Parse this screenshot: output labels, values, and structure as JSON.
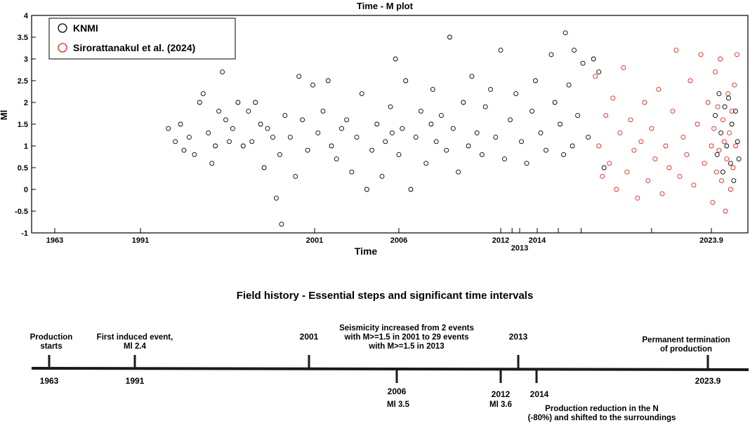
{
  "chart_data": [
    {
      "type": "scatter",
      "title": "Time - M plot",
      "xlabel": "Time",
      "ylabel": "Ml",
      "ylim": [
        -1,
        4
      ],
      "yticks": [
        "-1",
        "-0.5",
        "0",
        "0.5",
        "1",
        "1.5",
        "2",
        "2.5",
        "3",
        "3.5",
        "4"
      ],
      "xticks": [
        {
          "label": "1963",
          "x": 1963
        },
        {
          "label": "1991",
          "x": 1991
        },
        {
          "label": "2001",
          "x": 2001
        },
        {
          "label": "2006",
          "x": 2006
        },
        {
          "label": "2012",
          "x": 2012
        },
        {
          "label": "2013",
          "x": 2013
        },
        {
          "label": "2014",
          "x": 2014
        },
        {
          "label": "2023.9",
          "x": 2023.9
        }
      ],
      "extra_ticks": [
        2012.6,
        2015.2,
        2016.5,
        2020.5
      ],
      "legend_position": "top-left",
      "series": [
        {
          "name": "KNMI",
          "color": "#000000",
          "points": [
            [
              1992.6,
              1.4
            ],
            [
              1993.0,
              1.1
            ],
            [
              1993.3,
              1.5
            ],
            [
              1993.5,
              0.9
            ],
            [
              1993.8,
              1.2
            ],
            [
              1994.1,
              0.8
            ],
            [
              1994.4,
              2.0
            ],
            [
              1994.6,
              2.2
            ],
            [
              1994.9,
              1.3
            ],
            [
              1995.1,
              0.6
            ],
            [
              1995.3,
              1.0
            ],
            [
              1995.5,
              1.8
            ],
            [
              1995.7,
              2.7
            ],
            [
              1995.9,
              1.6
            ],
            [
              1996.1,
              1.1
            ],
            [
              1996.3,
              1.4
            ],
            [
              1996.6,
              2.0
            ],
            [
              1996.9,
              1.0
            ],
            [
              1997.2,
              1.8
            ],
            [
              1997.4,
              1.1
            ],
            [
              1997.6,
              2.0
            ],
            [
              1997.9,
              1.5
            ],
            [
              1998.1,
              0.5
            ],
            [
              1998.3,
              1.4
            ],
            [
              1998.6,
              1.2
            ],
            [
              1998.8,
              -0.2
            ],
            [
              1999.0,
              0.8
            ],
            [
              1999.1,
              -0.8
            ],
            [
              1999.3,
              1.7
            ],
            [
              1999.6,
              1.2
            ],
            [
              1999.9,
              0.3
            ],
            [
              2000.1,
              2.6
            ],
            [
              2000.3,
              1.6
            ],
            [
              2000.6,
              0.9
            ],
            [
              2000.9,
              2.4
            ],
            [
              2001.2,
              1.3
            ],
            [
              2001.5,
              1.8
            ],
            [
              2001.8,
              2.5
            ],
            [
              2002.0,
              1.0
            ],
            [
              2002.3,
              0.7
            ],
            [
              2002.6,
              1.4
            ],
            [
              2002.9,
              1.6
            ],
            [
              2003.2,
              0.4
            ],
            [
              2003.5,
              1.2
            ],
            [
              2003.8,
              2.2
            ],
            [
              2004.1,
              0.0
            ],
            [
              2004.4,
              0.9
            ],
            [
              2004.7,
              1.5
            ],
            [
              2005.0,
              0.3
            ],
            [
              2005.2,
              1.1
            ],
            [
              2005.5,
              1.9
            ],
            [
              2005.6,
              1.3
            ],
            [
              2005.8,
              3.0
            ],
            [
              2006.0,
              0.8
            ],
            [
              2006.2,
              1.4
            ],
            [
              2006.4,
              2.5
            ],
            [
              2006.7,
              0.0
            ],
            [
              2007.0,
              1.2
            ],
            [
              2007.3,
              1.8
            ],
            [
              2007.6,
              0.6
            ],
            [
              2007.9,
              1.5
            ],
            [
              2008.0,
              2.3
            ],
            [
              2008.2,
              1.1
            ],
            [
              2008.5,
              1.7
            ],
            [
              2008.8,
              0.9
            ],
            [
              2009.0,
              3.5
            ],
            [
              2009.2,
              1.4
            ],
            [
              2009.5,
              0.4
            ],
            [
              2009.8,
              2.0
            ],
            [
              2010.1,
              1.0
            ],
            [
              2010.3,
              2.6
            ],
            [
              2010.6,
              1.3
            ],
            [
              2010.9,
              0.8
            ],
            [
              2011.1,
              1.9
            ],
            [
              2011.4,
              2.3
            ],
            [
              2011.7,
              1.2
            ],
            [
              2012.0,
              3.2
            ],
            [
              2012.2,
              0.7
            ],
            [
              2012.5,
              1.6
            ],
            [
              2012.8,
              2.2
            ],
            [
              2013.1,
              1.1
            ],
            [
              2013.4,
              0.6
            ],
            [
              2013.7,
              1.8
            ],
            [
              2013.9,
              2.5
            ],
            [
              2014.2,
              1.3
            ],
            [
              2014.5,
              0.9
            ],
            [
              2014.8,
              3.1
            ],
            [
              2015.0,
              2.0
            ],
            [
              2015.3,
              1.5
            ],
            [
              2015.5,
              0.8
            ],
            [
              2015.6,
              3.6
            ],
            [
              2015.8,
              2.4
            ],
            [
              2016.0,
              1.0
            ],
            [
              2016.1,
              3.2
            ],
            [
              2016.3,
              1.7
            ],
            [
              2016.6,
              2.9
            ],
            [
              2016.9,
              1.2
            ],
            [
              2017.2,
              3.0
            ],
            [
              2017.5,
              2.7
            ],
            [
              2017.8,
              0.5
            ],
            [
              2024.5,
              1.7
            ],
            [
              2024.8,
              0.8
            ],
            [
              2025.1,
              2.2
            ],
            [
              2025.4,
              1.3
            ],
            [
              2025.7,
              0.4
            ],
            [
              2026.0,
              1.9
            ],
            [
              2026.3,
              1.0
            ],
            [
              2026.6,
              2.1
            ],
            [
              2026.9,
              0.6
            ],
            [
              2027.1,
              1.5
            ],
            [
              2027.4,
              0.2
            ],
            [
              2027.7,
              1.8
            ],
            [
              2028.0,
              1.1
            ],
            [
              2028.2,
              0.7
            ]
          ]
        },
        {
          "name": "Sirorattanakul et al. (2024)",
          "color": "#e8231d",
          "points": [
            [
              2017.3,
              2.6
            ],
            [
              2017.5,
              1.0
            ],
            [
              2017.7,
              0.3
            ],
            [
              2017.9,
              1.7
            ],
            [
              2018.1,
              0.6
            ],
            [
              2018.3,
              2.1
            ],
            [
              2018.5,
              0.0
            ],
            [
              2018.7,
              1.3
            ],
            [
              2018.9,
              2.8
            ],
            [
              2019.1,
              0.4
            ],
            [
              2019.3,
              1.6
            ],
            [
              2019.5,
              0.9
            ],
            [
              2019.7,
              -0.2
            ],
            [
              2019.9,
              1.1
            ],
            [
              2020.1,
              2.0
            ],
            [
              2020.3,
              0.2
            ],
            [
              2020.5,
              1.4
            ],
            [
              2020.7,
              0.7
            ],
            [
              2020.9,
              2.3
            ],
            [
              2021.1,
              -0.1
            ],
            [
              2021.3,
              1.0
            ],
            [
              2021.5,
              0.5
            ],
            [
              2021.7,
              1.8
            ],
            [
              2021.9,
              3.2
            ],
            [
              2022.1,
              0.3
            ],
            [
              2022.3,
              1.2
            ],
            [
              2022.5,
              0.8
            ],
            [
              2022.7,
              2.5
            ],
            [
              2022.9,
              0.1
            ],
            [
              2023.1,
              1.5
            ],
            [
              2023.3,
              3.1
            ],
            [
              2023.5,
              0.6
            ],
            [
              2023.7,
              2.0
            ],
            [
              2023.9,
              1.0
            ],
            [
              2024.1,
              -0.3
            ],
            [
              2024.3,
              1.4
            ],
            [
              2024.5,
              2.7
            ],
            [
              2024.7,
              0.4
            ],
            [
              2024.9,
              1.9
            ],
            [
              2025.1,
              0.9
            ],
            [
              2025.3,
              3.0
            ],
            [
              2025.5,
              0.2
            ],
            [
              2025.7,
              1.6
            ],
            [
              2025.9,
              1.1
            ],
            [
              2026.1,
              -0.5
            ],
            [
              2026.3,
              0.7
            ],
            [
              2026.5,
              2.2
            ],
            [
              2026.7,
              1.3
            ],
            [
              2026.9,
              0.0
            ],
            [
              2027.1,
              1.8
            ],
            [
              2027.3,
              0.5
            ],
            [
              2027.5,
              2.4
            ],
            [
              2027.7,
              1.0
            ],
            [
              2027.9,
              3.1
            ]
          ]
        }
      ]
    },
    {
      "type": "timeline",
      "title": "Field history - Essential steps and significant time intervals",
      "events": [
        {
          "year": "1963",
          "above": "Production\nstarts",
          "below": ""
        },
        {
          "year": "1991",
          "above": "First induced event,\nMl 2.4",
          "below": ""
        },
        {
          "year": "2001",
          "above": "",
          "below": ""
        },
        {
          "year": "2006",
          "above": "Seismicity increased from 2 events\nwith M>=1.5 in 2001 to 29 events\nwith M>=1.5 in 2013",
          "below": "Ml 3.5"
        },
        {
          "year": "2012",
          "above": "",
          "below": "Ml 3.6"
        },
        {
          "year": "2013",
          "above": "",
          "below": ""
        },
        {
          "year": "2014",
          "above": "",
          "below": "Production reduction in the N\n(-80%) and shifted to the surroundings"
        },
        {
          "year": "2023.9",
          "above": "Permanent termination\nof production",
          "below": ""
        }
      ]
    }
  ]
}
